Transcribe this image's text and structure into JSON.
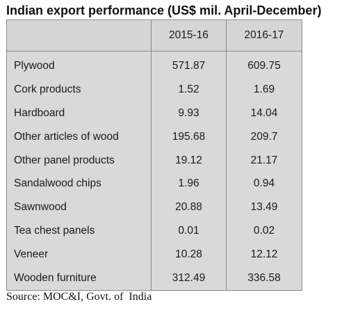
{
  "title": "Indian export performance (US$ mil. April-December)",
  "table": {
    "columns": [
      "",
      "2015-16",
      "2016-17"
    ],
    "rows": [
      {
        "product": "Plywood",
        "y2015_16": "571.87",
        "y2016_17": "609.75"
      },
      {
        "product": "Cork products",
        "y2015_16": "1.52",
        "y2016_17": "1.69"
      },
      {
        "product": "Hardboard",
        "y2015_16": "9.93",
        "y2016_17": "14.04"
      },
      {
        "product": "Other articles of wood",
        "y2015_16": "195.68",
        "y2016_17": "209.7"
      },
      {
        "product": "Other panel products",
        "y2015_16": "19.12",
        "y2016_17": "21.17"
      },
      {
        "product": "Sandalwood chips",
        "y2015_16": "1.96",
        "y2016_17": "0.94"
      },
      {
        "product": "Sawnwood",
        "y2015_16": "20.88",
        "y2016_17": "13.49"
      },
      {
        "product": "Tea chest panels",
        "y2015_16": "0.01",
        "y2016_17": "0.02"
      },
      {
        "product": "Veneer",
        "y2015_16": "10.28",
        "y2016_17": "12.12"
      },
      {
        "product": "Wooden furniture",
        "y2015_16": "312.49",
        "y2016_17": "336.58"
      }
    ]
  },
  "source": "Source: MOC&I, Govt. of  India",
  "colors": {
    "table_background": "#d9d9d9",
    "grid_lines": "#8a8a8a"
  }
}
